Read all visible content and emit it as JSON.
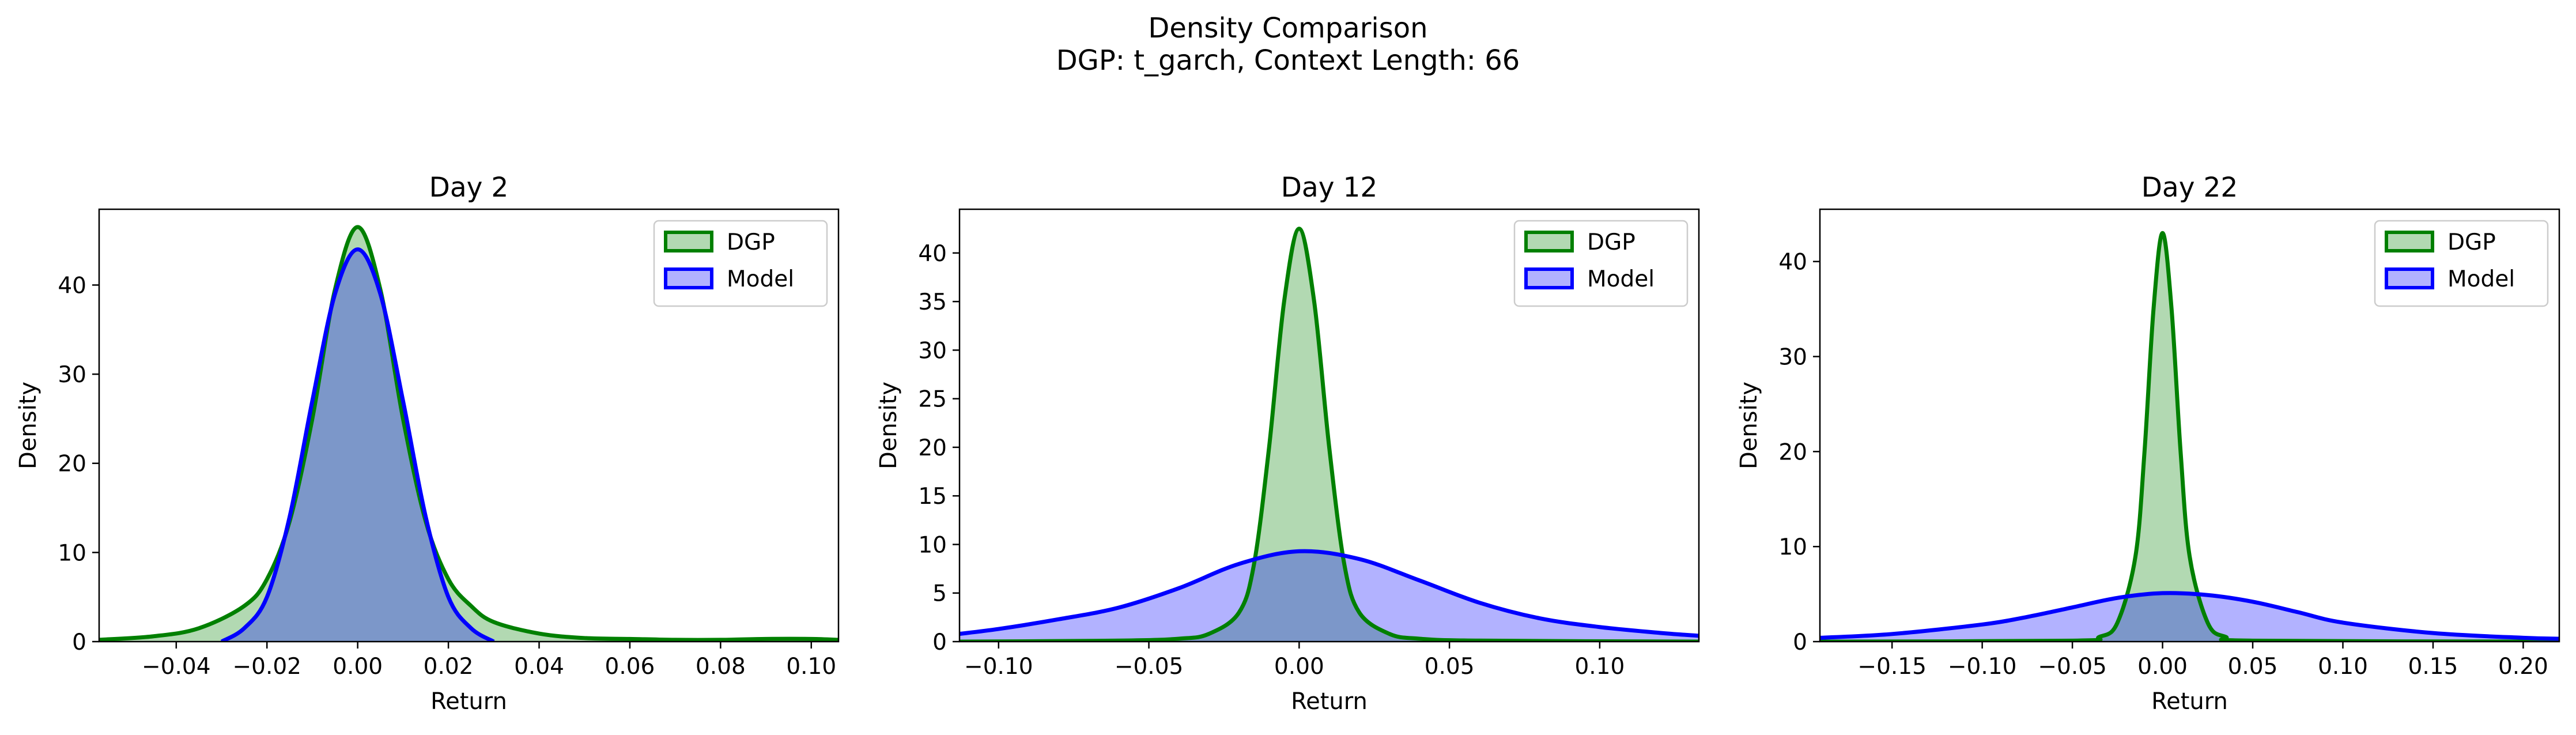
{
  "figure": {
    "title_line1": "Density Comparison",
    "title_line2": "DGP: t_garch, Context Length: 66",
    "colors": {
      "dgp": "#008000",
      "model": "#0000ff",
      "dgp_fill": "#b2d8b2",
      "model_fill": "#b2b2ff"
    }
  },
  "chart_data": [
    {
      "type": "area",
      "title": "Day 2",
      "xlabel": "Return",
      "ylabel": "Density",
      "xlim": [
        -0.057,
        0.106
      ],
      "ylim": [
        0,
        48.5
      ],
      "xticks": [
        -0.04,
        -0.02,
        0.0,
        0.02,
        0.04,
        0.06,
        0.08,
        0.1
      ],
      "xtick_labels": [
        "−0.04",
        "−0.02",
        "0.00",
        "0.02",
        "0.04",
        "0.06",
        "0.08",
        "0.10"
      ],
      "yticks": [
        0,
        10,
        20,
        30,
        40
      ],
      "ytick_labels": [
        "0",
        "10",
        "20",
        "30",
        "40"
      ],
      "legend": {
        "position": "top-right",
        "entries": [
          "DGP",
          "Model"
        ]
      },
      "series": [
        {
          "name": "DGP",
          "x": [
            -0.057,
            -0.045,
            -0.035,
            -0.025,
            -0.02,
            -0.015,
            -0.01,
            -0.005,
            0.0,
            0.005,
            0.01,
            0.015,
            0.02,
            0.025,
            0.03,
            0.04,
            0.05,
            0.06,
            0.07,
            0.08,
            0.09,
            0.1,
            0.106
          ],
          "y": [
            0.2,
            0.6,
            1.5,
            4.0,
            7.0,
            13.5,
            25.0,
            39.5,
            46.5,
            39.5,
            25.0,
            13.5,
            7.0,
            4.0,
            2.2,
            0.9,
            0.4,
            0.3,
            0.2,
            0.2,
            0.3,
            0.3,
            0.2
          ]
        },
        {
          "name": "Model",
          "x": [
            -0.03,
            -0.025,
            -0.02,
            -0.015,
            -0.01,
            -0.005,
            0.0,
            0.005,
            0.01,
            0.015,
            0.02,
            0.025,
            0.03
          ],
          "y": [
            0.0,
            1.5,
            5.0,
            14.0,
            27.0,
            39.0,
            44.0,
            39.0,
            27.0,
            14.0,
            5.0,
            1.5,
            0.0
          ]
        }
      ]
    },
    {
      "type": "area",
      "title": "Day 12",
      "xlabel": "Return",
      "ylabel": "Density",
      "xlim": [
        -0.113,
        0.133
      ],
      "ylim": [
        0,
        44.5
      ],
      "xticks": [
        -0.1,
        -0.05,
        0.0,
        0.05,
        0.1
      ],
      "xtick_labels": [
        "−0.10",
        "−0.05",
        "0.00",
        "0.05",
        "0.10"
      ],
      "yticks": [
        0,
        5,
        10,
        15,
        20,
        25,
        30,
        35,
        40
      ],
      "ytick_labels": [
        "0",
        "5",
        "10",
        "15",
        "20",
        "25",
        "30",
        "35",
        "40"
      ],
      "legend": {
        "position": "top-right",
        "entries": [
          "DGP",
          "Model"
        ]
      },
      "series": [
        {
          "name": "DGP",
          "x": [
            -0.113,
            -0.06,
            -0.04,
            -0.03,
            -0.02,
            -0.015,
            -0.01,
            -0.005,
            0.0,
            0.005,
            0.01,
            0.015,
            0.02,
            0.03,
            0.04,
            0.06,
            0.133
          ],
          "y": [
            0.0,
            0.1,
            0.3,
            0.8,
            3.0,
            8.0,
            20.0,
            35.0,
            42.5,
            35.0,
            20.0,
            8.0,
            3.0,
            0.8,
            0.3,
            0.1,
            0.0
          ]
        },
        {
          "name": "Model",
          "x": [
            -0.113,
            -0.1,
            -0.08,
            -0.06,
            -0.04,
            -0.02,
            0.0,
            0.02,
            0.04,
            0.06,
            0.08,
            0.1,
            0.12,
            0.133
          ],
          "y": [
            0.8,
            1.3,
            2.3,
            3.5,
            5.5,
            8.0,
            9.3,
            8.5,
            6.3,
            4.0,
            2.4,
            1.5,
            0.9,
            0.6
          ]
        }
      ]
    },
    {
      "type": "area",
      "title": "Day 22",
      "xlabel": "Return",
      "ylabel": "Density",
      "xlim": [
        -0.19,
        0.22
      ],
      "ylim": [
        0,
        45.5
      ],
      "xticks": [
        -0.15,
        -0.1,
        -0.05,
        0.0,
        0.05,
        0.1,
        0.15,
        0.2
      ],
      "xtick_labels": [
        "−0.15",
        "−0.10",
        "−0.05",
        "0.00",
        "0.05",
        "0.10",
        "0.15",
        "0.20"
      ],
      "yticks": [
        0,
        10,
        20,
        30,
        40
      ],
      "ytick_labels": [
        "0",
        "10",
        "20",
        "30",
        "40"
      ],
      "legend": {
        "position": "top-right",
        "entries": [
          "DGP",
          "Model"
        ]
      },
      "series": [
        {
          "name": "DGP",
          "x": [
            -0.19,
            -0.05,
            -0.035,
            -0.025,
            -0.015,
            -0.01,
            -0.005,
            0.0,
            0.005,
            0.01,
            0.015,
            0.025,
            0.035,
            0.05,
            0.22
          ],
          "y": [
            0.0,
            0.1,
            0.5,
            2.0,
            9.0,
            20.0,
            35.0,
            43.0,
            35.0,
            20.0,
            9.0,
            2.0,
            0.5,
            0.1,
            0.0
          ]
        },
        {
          "name": "Model",
          "x": [
            -0.19,
            -0.15,
            -0.1,
            -0.075,
            -0.05,
            -0.025,
            0.0,
            0.025,
            0.05,
            0.075,
            0.1,
            0.15,
            0.2,
            0.22
          ],
          "y": [
            0.4,
            0.8,
            1.8,
            2.6,
            3.6,
            4.6,
            5.1,
            4.9,
            4.2,
            3.1,
            2.0,
            0.9,
            0.4,
            0.3
          ]
        }
      ]
    }
  ]
}
